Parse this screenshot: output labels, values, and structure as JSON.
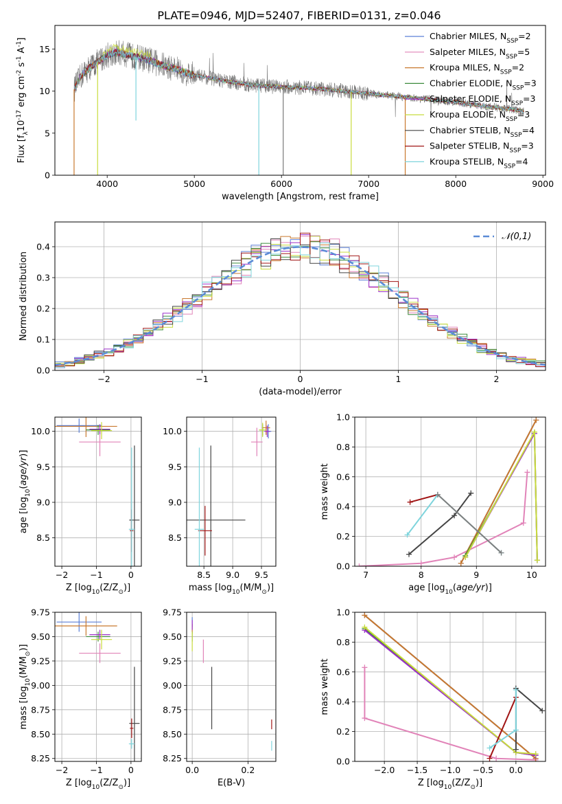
{
  "title": "PLATE=0946, MJD=52407, FIBERID=0131, z=0.046",
  "legend_entries": [
    {
      "name": "Chabrier MILES, N$_{SSP}$=2",
      "color": "#5b7fd6"
    },
    {
      "name": "Salpeter MILES, N$_{SSP}$=5",
      "color": "#e183b8"
    },
    {
      "name": "Kroupa MILES, N$_{SSP}$=2",
      "color": "#c8782d"
    },
    {
      "name": "Chabrier ELODIE, N$_{SSP}$=3",
      "color": "#3a8a3a"
    },
    {
      "name": "Salpeter ELODIE, N$_{SSP}$=3",
      "color": "#9b30c8"
    },
    {
      "name": "Kroupa ELODIE, N$_{SSP}$=3",
      "color": "#c8dc3c"
    },
    {
      "name": "Chabrier STELIB, N$_{SSP}$=4",
      "color": "#444444"
    },
    {
      "name": "Salpeter STELIB, N$_{SSP}$=3",
      "color": "#a01414"
    },
    {
      "name": "Kroupa STELIB, N$_{SSP}$=4",
      "color": "#7ed4dc"
    }
  ],
  "chart_data": [
    {
      "id": "spectrum",
      "type": "line",
      "xlabel": "wavelength [Angstrom, rest frame]",
      "ylabel": "Flux [f$_\\lambda$10$^{-17}$ erg cm$^{-2}$ s$^{-1}$ A$^{-1}$]",
      "xlim": [
        3400,
        9030
      ],
      "ylim": [
        0,
        17.8
      ],
      "xticks": [
        4000,
        5000,
        6000,
        7000,
        8000,
        9000
      ],
      "yticks": [
        0,
        5,
        10,
        15
      ],
      "grid": false,
      "legend_position": "upper right",
      "continuum": {
        "x": [
          3620,
          3700,
          3800,
          3900,
          4000,
          4100,
          4200,
          4300,
          4400,
          4500,
          4600,
          4700,
          4800,
          4900,
          5000,
          5200,
          5400,
          5600,
          5800,
          6000,
          6200,
          6400,
          6600,
          6800,
          7000,
          7200,
          7400,
          7600,
          7800,
          8000,
          8200,
          8400,
          8600,
          8780
        ],
        "y": [
          10.2,
          11.8,
          12.8,
          13.5,
          14.3,
          14.6,
          14.4,
          14.1,
          13.9,
          13.6,
          13.2,
          12.9,
          12.6,
          12.2,
          11.9,
          11.5,
          11.1,
          10.8,
          10.6,
          10.5,
          10.4,
          10.3,
          10.1,
          9.9,
          9.7,
          9.5,
          9.3,
          9.1,
          8.9,
          8.7,
          8.4,
          8.1,
          7.9,
          7.6
        ]
      },
      "absorption_dips": [
        {
          "x": 3620,
          "y": 0.0
        },
        {
          "x": 3890,
          "y": 0.0
        },
        {
          "x": 4330,
          "y": 6.5
        },
        {
          "x": 5740,
          "y": 0.0
        },
        {
          "x": 6020,
          "y": 0.0
        },
        {
          "x": 6800,
          "y": 0.0
        },
        {
          "x": 7420,
          "y": 0.0
        }
      ]
    },
    {
      "id": "residuals",
      "type": "histogram",
      "xlabel": "(data-model)/error",
      "ylabel": "Normed distribution",
      "xlim": [
        -2.5,
        2.5
      ],
      "ylim": [
        0,
        0.48
      ],
      "xticks": [
        -2,
        -1,
        0,
        1,
        2
      ],
      "yticks": [
        0.0,
        0.1,
        0.2,
        0.3,
        0.4
      ],
      "grid": true,
      "legend_position": "upper right",
      "bin_width": 0.1,
      "reference_curve": {
        "name": "$\\mathcal{N}(0,1)$",
        "color": "#5b8bd6",
        "style": "dashed"
      }
    },
    {
      "id": "age_vs_Z",
      "type": "errorbar",
      "xlabel": "Z [log$_{10}$(Z/Z$_\\odot$)]",
      "ylabel": "age  [log$_{10}$($age/yr$)]",
      "xlim": [
        -2.2,
        0.3
      ],
      "ylim": [
        8.1,
        10.2
      ],
      "xticks": [
        -2,
        -1,
        0
      ],
      "yticks": [
        8.5,
        9.0,
        9.5,
        10.0
      ],
      "grid": true,
      "points": [
        {
          "x": -1.5,
          "y": 10.08,
          "xerr": 0.65,
          "yerr": 0.1,
          "color": "#5b7fd6"
        },
        {
          "x": -0.9,
          "y": 9.85,
          "xerr": 0.6,
          "yerr": 0.2,
          "color": "#e183b8"
        },
        {
          "x": -1.3,
          "y": 10.07,
          "xerr": 0.9,
          "yerr": 0.15,
          "color": "#c8782d"
        },
        {
          "x": -0.95,
          "y": 10.02,
          "xerr": 0.35,
          "yerr": 0.07,
          "color": "#3a8a3a"
        },
        {
          "x": -0.9,
          "y": 10.03,
          "xerr": 0.3,
          "yerr": 0.07,
          "color": "#9b30c8"
        },
        {
          "x": -0.85,
          "y": 10.01,
          "xerr": 0.3,
          "yerr": 0.12,
          "color": "#c8dc3c"
        },
        {
          "x": 0.1,
          "y": 8.75,
          "xerr": 0.15,
          "yerr": 1.05,
          "color": "#444444"
        },
        {
          "x": 0.02,
          "y": 8.6,
          "xerr": 0.05,
          "yerr": 0.3,
          "color": "#a01414"
        },
        {
          "x": 0.02,
          "y": 8.62,
          "xerr": 0.08,
          "yerr": 1.15,
          "color": "#7ed4dc"
        }
      ]
    },
    {
      "id": "age_vs_mass",
      "type": "errorbar",
      "xlabel": "mass [log$_{10}$(M/M$_\\odot$)]",
      "ylabel": "",
      "xlim": [
        8.2,
        9.75
      ],
      "ylim": [
        8.1,
        10.2
      ],
      "xticks": [
        8.5,
        9.0,
        9.5
      ],
      "yticks": [
        8.5,
        9.0,
        9.5,
        10.0
      ],
      "grid": true,
      "points": [
        {
          "x": 9.62,
          "y": 10.0,
          "xerr": 0.05,
          "yerr": 0.1,
          "color": "#5b7fd6"
        },
        {
          "x": 9.42,
          "y": 9.85,
          "xerr": 0.1,
          "yerr": 0.2,
          "color": "#e183b8"
        },
        {
          "x": 9.58,
          "y": 10.05,
          "xerr": 0.07,
          "yerr": 0.1,
          "color": "#c8782d"
        },
        {
          "x": 9.52,
          "y": 10.02,
          "xerr": 0.06,
          "yerr": 0.08,
          "color": "#3a8a3a"
        },
        {
          "x": 9.6,
          "y": 10.0,
          "xerr": 0.05,
          "yerr": 0.08,
          "color": "#9b30c8"
        },
        {
          "x": 9.52,
          "y": 10.02,
          "xerr": 0.06,
          "yerr": 0.1,
          "color": "#c8dc3c"
        },
        {
          "x": 8.62,
          "y": 8.75,
          "xerr": 0.6,
          "yerr": 1.05,
          "color": "#444444"
        },
        {
          "x": 8.52,
          "y": 8.6,
          "xerr": 0.12,
          "yerr": 0.35,
          "color": "#a01414"
        },
        {
          "x": 8.42,
          "y": 8.62,
          "xerr": 0.08,
          "yerr": 1.15,
          "color": "#7ed4dc"
        }
      ]
    },
    {
      "id": "mass_weight_vs_age",
      "type": "line",
      "xlabel": "age  [log$_{10}$($age/yr$)]",
      "ylabel": "mass weight",
      "xlim": [
        6.8,
        10.25
      ],
      "ylim": [
        0,
        1.0
      ],
      "xticks": [
        7,
        8,
        9,
        10
      ],
      "yticks": [
        0.0,
        0.2,
        0.4,
        0.6,
        0.8,
        1.0
      ],
      "grid": true,
      "series": [
        {
          "color": "#5b7fd6",
          "x": [
            8.72,
            10.08
          ],
          "y": [
            0.02,
            0.98
          ]
        },
        {
          "color": "#e183b8",
          "x": [
            6.88,
            8.0,
            8.6,
            9.85,
            9.92
          ],
          "y": [
            0.0,
            0.02,
            0.06,
            0.29,
            0.63
          ]
        },
        {
          "color": "#c8782d",
          "x": [
            8.72,
            10.08
          ],
          "y": [
            0.02,
            0.98
          ]
        },
        {
          "color": "#3a8a3a",
          "x": [
            8.8,
            10.05,
            10.1
          ],
          "y": [
            0.07,
            0.89,
            0.04
          ]
        },
        {
          "color": "#9b30c8",
          "x": [
            8.8,
            10.05,
            10.1
          ],
          "y": [
            0.06,
            0.89,
            0.04
          ]
        },
        {
          "color": "#c8dc3c",
          "x": [
            8.8,
            10.05,
            10.1
          ],
          "y": [
            0.06,
            0.9,
            0.04
          ]
        },
        {
          "color": "#444444",
          "x": [
            7.78,
            8.6,
            8.9
          ],
          "y": [
            0.08,
            0.34,
            0.49
          ]
        },
        {
          "color": "#a01414",
          "x": [
            7.8,
            8.3
          ],
          "y": [
            0.43,
            0.48
          ]
        },
        {
          "color": "#7ed4dc",
          "x": [
            7.75,
            8.3,
            9.45
          ],
          "y": [
            0.21,
            0.48,
            0.09
          ]
        },
        {
          "color": "#7f7f7f",
          "x": [
            8.3,
            9.45
          ],
          "y": [
            0.48,
            0.09
          ]
        }
      ]
    },
    {
      "id": "mass_vs_Z",
      "type": "errorbar",
      "xlabel": "Z [log$_{10}$(Z/Z$_\\odot$)]",
      "ylabel": "mass [log$_{10}$(M/M$_\\odot$)]",
      "xlim": [
        -2.2,
        0.3
      ],
      "ylim": [
        8.22,
        9.75
      ],
      "xticks": [
        -2,
        -1,
        0
      ],
      "yticks": [
        8.25,
        8.5,
        8.75,
        9.0,
        9.25,
        9.5,
        9.75
      ],
      "grid": true,
      "points": [
        {
          "x": -1.5,
          "y": 9.65,
          "xerr": 0.65,
          "yerr": 0.1,
          "color": "#5b7fd6"
        },
        {
          "x": -0.9,
          "y": 9.33,
          "xerr": 0.6,
          "yerr": 0.1,
          "color": "#e183b8"
        },
        {
          "x": -1.3,
          "y": 9.61,
          "xerr": 0.9,
          "yerr": 0.1,
          "color": "#c8782d"
        },
        {
          "x": -0.95,
          "y": 9.5,
          "xerr": 0.35,
          "yerr": 0.05,
          "color": "#3a8a3a"
        },
        {
          "x": -0.9,
          "y": 9.52,
          "xerr": 0.3,
          "yerr": 0.05,
          "color": "#9b30c8"
        },
        {
          "x": -0.85,
          "y": 9.47,
          "xerr": 0.3,
          "yerr": 0.1,
          "color": "#c8dc3c"
        },
        {
          "x": 0.1,
          "y": 8.61,
          "xerr": 0.15,
          "yerr": 0.58,
          "color": "#444444"
        },
        {
          "x": 0.02,
          "y": 8.56,
          "xerr": 0.05,
          "yerr": 0.1,
          "color": "#a01414"
        },
        {
          "x": 0.02,
          "y": 8.4,
          "xerr": 0.08,
          "yerr": 0.05,
          "color": "#7ed4dc"
        }
      ]
    },
    {
      "id": "mass_vs_ebv",
      "type": "errorbar",
      "xlabel": "E(B-V)",
      "ylabel": "",
      "xlim": [
        -0.02,
        0.3
      ],
      "ylim": [
        8.22,
        9.75
      ],
      "xticks": [
        0.0,
        0.2
      ],
      "yticks": [
        8.25,
        8.5,
        8.75,
        9.0,
        9.25,
        9.5,
        9.75
      ],
      "grid": true,
      "points": [
        {
          "x": 0.0,
          "y": 9.65,
          "xerr": 0.0,
          "yerr": 0.05,
          "color": "#5b7fd6"
        },
        {
          "x": 0.04,
          "y": 9.35,
          "xerr": 0.0,
          "yerr": 0.12,
          "color": "#e183b8"
        },
        {
          "x": 0.0,
          "y": 9.58,
          "xerr": 0.0,
          "yerr": 0.05,
          "color": "#c8782d"
        },
        {
          "x": 0.0,
          "y": 9.5,
          "xerr": 0.0,
          "yerr": 0.05,
          "color": "#3a8a3a"
        },
        {
          "x": 0.0,
          "y": 9.62,
          "xerr": 0.0,
          "yerr": 0.05,
          "color": "#9b30c8"
        },
        {
          "x": 0.0,
          "y": 9.45,
          "xerr": 0.0,
          "yerr": 0.1,
          "color": "#c8dc3c"
        },
        {
          "x": 0.07,
          "y": 8.87,
          "xerr": 0.0,
          "yerr": 0.32,
          "color": "#444444"
        },
        {
          "x": 0.285,
          "y": 8.6,
          "xerr": 0.0,
          "yerr": 0.05,
          "color": "#a01414"
        },
        {
          "x": 0.285,
          "y": 8.38,
          "xerr": 0.0,
          "yerr": 0.05,
          "color": "#7ed4dc"
        }
      ]
    },
    {
      "id": "mass_weight_vs_Z",
      "type": "line",
      "xlabel": "Z [log$_{10}$(Z/Z$_\\odot$)]",
      "ylabel": "mass weight",
      "xlim": [
        -2.45,
        0.45
      ],
      "ylim": [
        0,
        1.0
      ],
      "xticks": [
        -2.0,
        -1.5,
        -1.0,
        -0.5,
        0.0
      ],
      "yticks": [
        0.0,
        0.2,
        0.4,
        0.6,
        0.8,
        1.0
      ],
      "grid": true,
      "series": [
        {
          "color": "#5b7fd6",
          "x": [
            -2.3,
            0.3
          ],
          "y": [
            0.98,
            0.02
          ]
        },
        {
          "color": "#e183b8",
          "x": [
            -2.3,
            -2.3,
            -0.3,
            0.3,
            0.3
          ],
          "y": [
            0.63,
            0.29,
            0.02,
            0.01,
            0.05
          ]
        },
        {
          "color": "#c8782d",
          "x": [
            -2.3,
            0.3
          ],
          "y": [
            0.98,
            0.02
          ]
        },
        {
          "color": "#3a8a3a",
          "x": [
            -2.3,
            0.0,
            0.3
          ],
          "y": [
            0.89,
            0.06,
            0.04
          ]
        },
        {
          "color": "#9b30c8",
          "x": [
            -2.3,
            0.0,
            0.3
          ],
          "y": [
            0.88,
            0.06,
            0.04
          ]
        },
        {
          "color": "#c8dc3c",
          "x": [
            -2.3,
            0.0,
            0.3
          ],
          "y": [
            0.9,
            0.06,
            0.05
          ]
        },
        {
          "color": "#444444",
          "x": [
            0.0,
            0.0,
            0.4
          ],
          "y": [
            0.08,
            0.49,
            0.34
          ]
        },
        {
          "color": "#a01414",
          "x": [
            -0.4,
            0.0
          ],
          "y": [
            0.02,
            0.43
          ]
        },
        {
          "color": "#7ed4dc",
          "x": [
            -0.4,
            0.0,
            0.0
          ],
          "y": [
            0.09,
            0.21,
            0.48
          ]
        }
      ]
    }
  ]
}
